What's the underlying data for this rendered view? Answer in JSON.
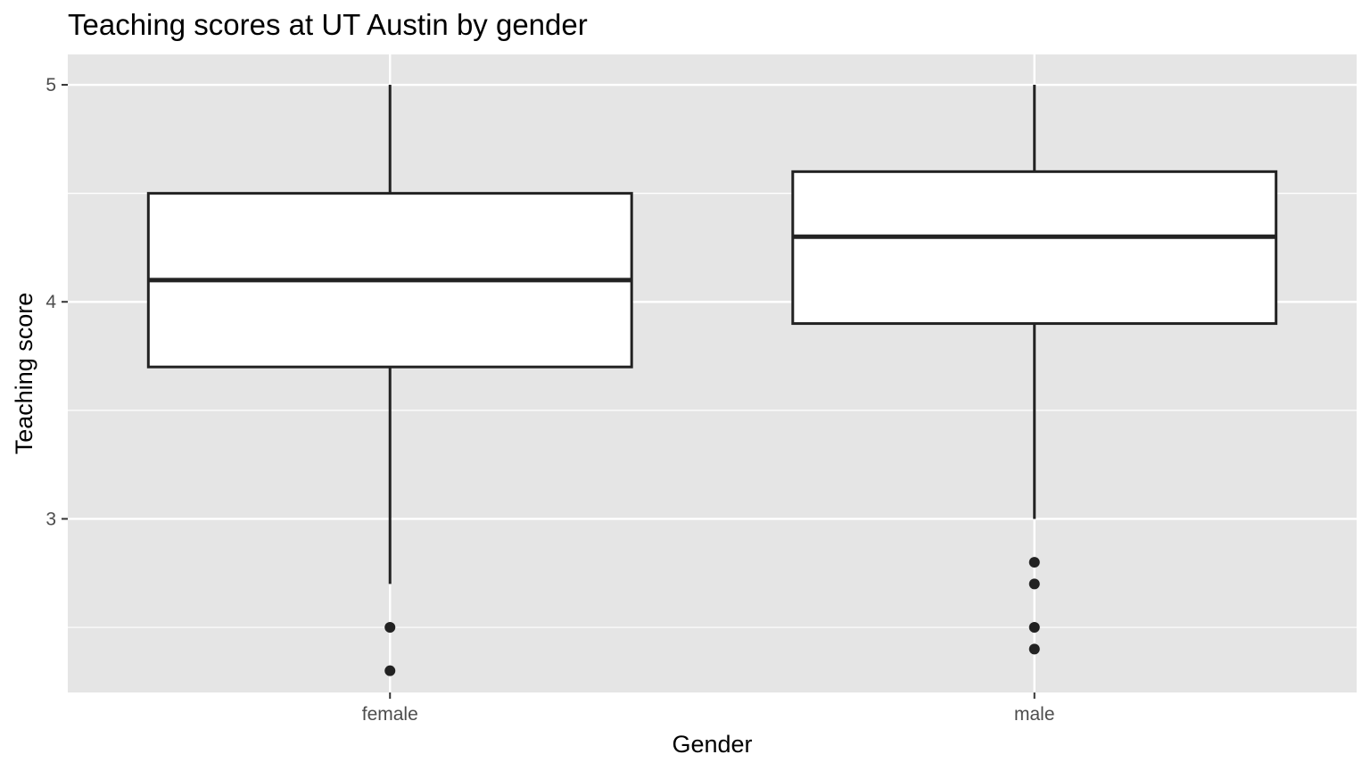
{
  "chart_data": {
    "type": "boxplot",
    "title": "Teaching scores at UT Austin by gender",
    "xlabel": "Gender",
    "ylabel": "Teaching score",
    "categories": [
      "female",
      "male"
    ],
    "y_ticks": [
      "3",
      "4",
      "5"
    ],
    "ylim": [
      2.2,
      5.14
    ],
    "grid": true,
    "legend": "none",
    "boxes": [
      {
        "category": "female",
        "whisker_low": 2.7,
        "q1": 3.7,
        "median": 4.1,
        "q3": 4.5,
        "whisker_high": 5.0,
        "outliers": [
          2.5,
          2.3
        ]
      },
      {
        "category": "male",
        "whisker_low": 3.0,
        "q1": 3.9,
        "median": 4.3,
        "q3": 4.6,
        "whisker_high": 5.0,
        "outliers": [
          2.8,
          2.7,
          2.5,
          2.4
        ]
      }
    ],
    "colors": {
      "panel_background": "#e5e5e5",
      "grid": "#ffffff",
      "box_fill": "#ffffff",
      "box_line": "#222222",
      "tick_text": "#4d4d4d"
    }
  }
}
